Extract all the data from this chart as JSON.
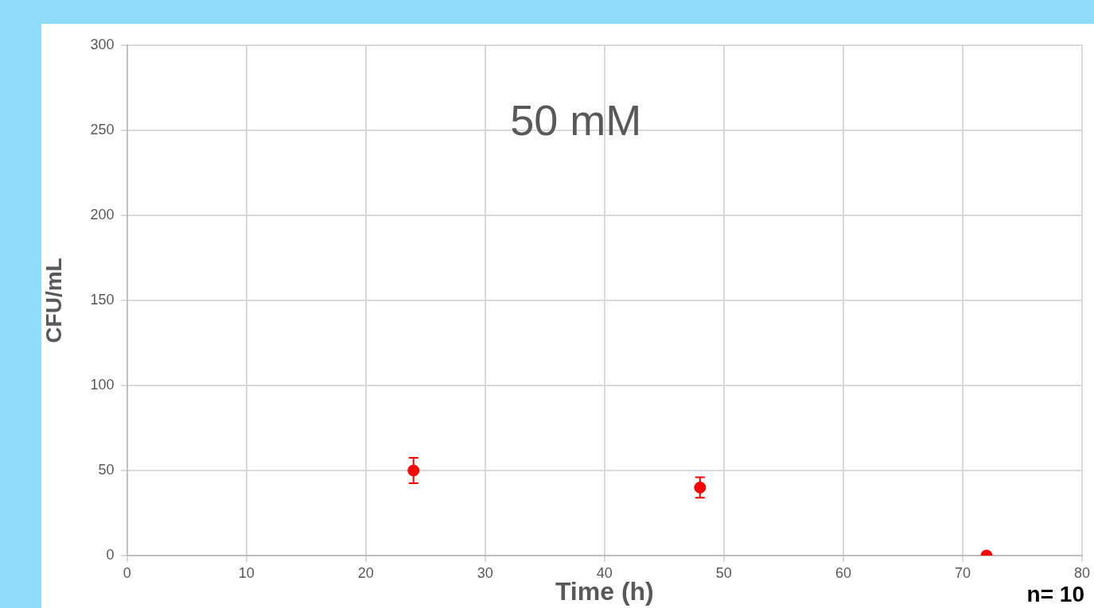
{
  "chart_data": {
    "type": "scatter",
    "title": "50 mM",
    "xlabel": "Time (h)",
    "ylabel": "CFU/mL",
    "x": [
      24,
      48,
      72
    ],
    "series": [
      {
        "color": "#ff0000",
        "values": [
          50,
          40,
          0
        ],
        "errors": [
          7.5,
          6,
          null
        ]
      }
    ],
    "xlim": [
      0,
      80
    ],
    "xticks": [
      0,
      10,
      20,
      30,
      40,
      50,
      60,
      70,
      80
    ],
    "ylim": [
      0,
      300
    ],
    "yticks": [
      0,
      50,
      100,
      150,
      200,
      250,
      300
    ],
    "grid": true,
    "legend": false,
    "marker": "circle",
    "annotations": [
      "n= 10"
    ]
  }
}
